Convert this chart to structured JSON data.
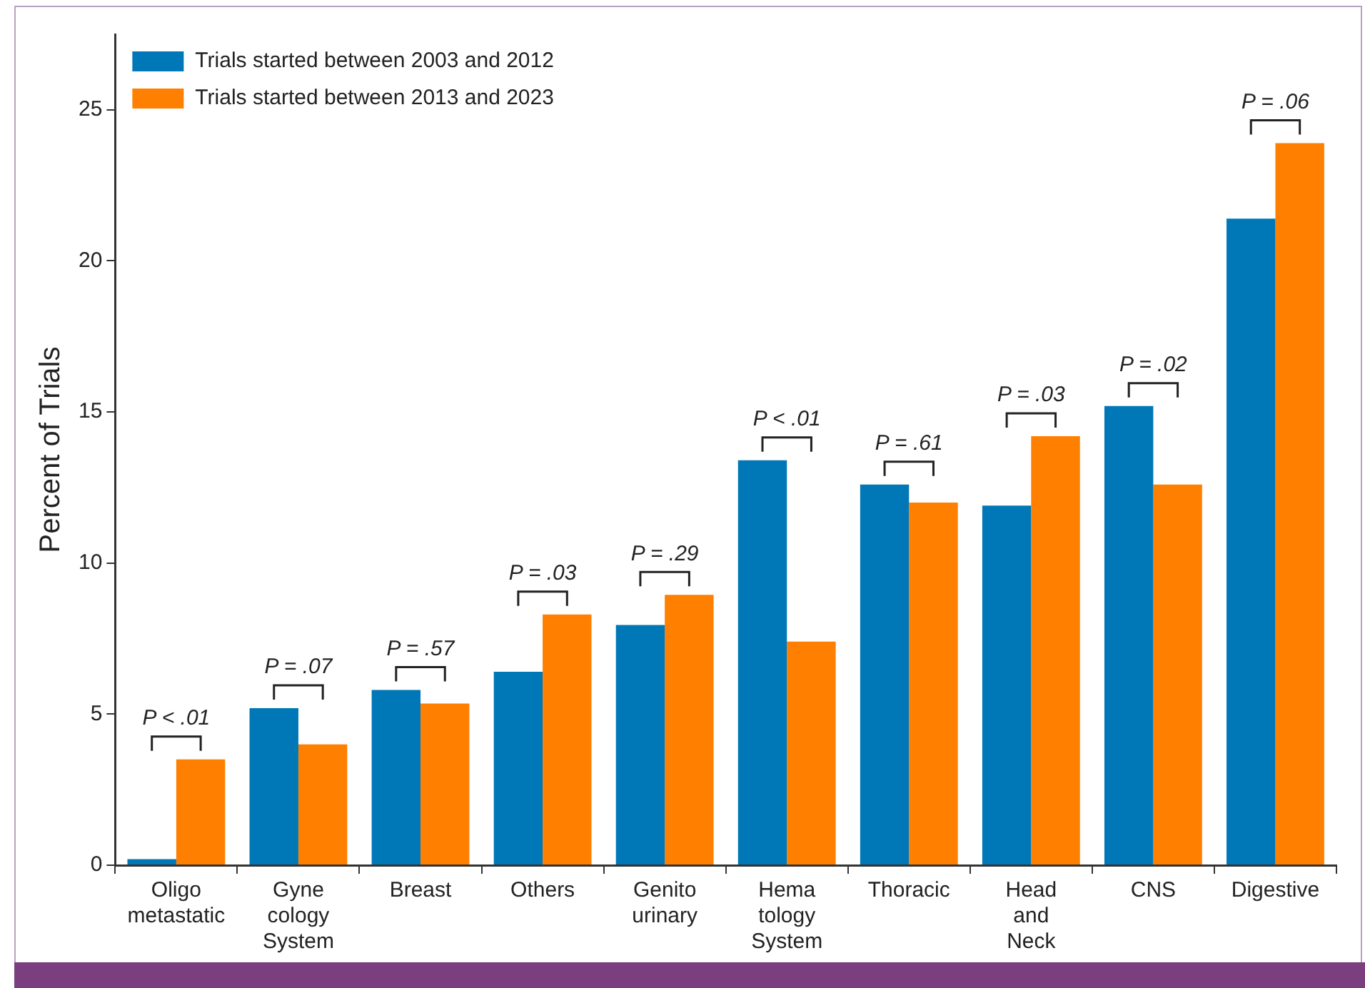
{
  "chart_data": {
    "type": "bar",
    "ylabel": "Percent of Trials",
    "categories": [
      "Oligo metastatic",
      "Gyne cology System",
      "Breast",
      "Others",
      "Genito urinary",
      "Hema tology System",
      "Thoracic",
      "Head and Neck",
      "CNS",
      "Digestive"
    ],
    "series": [
      {
        "name": "Trials started between 2003 and 2012",
        "color": "#0077b6",
        "values": [
          0.2,
          5.2,
          5.8,
          6.4,
          7.95,
          13.4,
          12.6,
          11.9,
          15.2,
          21.4
        ]
      },
      {
        "name": "Trials started between 2013 and 2023",
        "color": "#ff7f00",
        "values": [
          3.5,
          4.0,
          5.35,
          8.3,
          8.95,
          7.4,
          12.0,
          14.2,
          12.6,
          23.9
        ]
      }
    ],
    "ylim": [
      0,
      27.5
    ],
    "yticks": [
      0,
      5,
      10,
      15,
      20,
      25
    ],
    "grid": false,
    "legend": "top left",
    "annotations": [
      "P < .01",
      "P = .07",
      "P = .57",
      "P = .03",
      "P = .29",
      "P < .01",
      "P = .61",
      "P = .03",
      "P = .02",
      "P = .06"
    ]
  }
}
